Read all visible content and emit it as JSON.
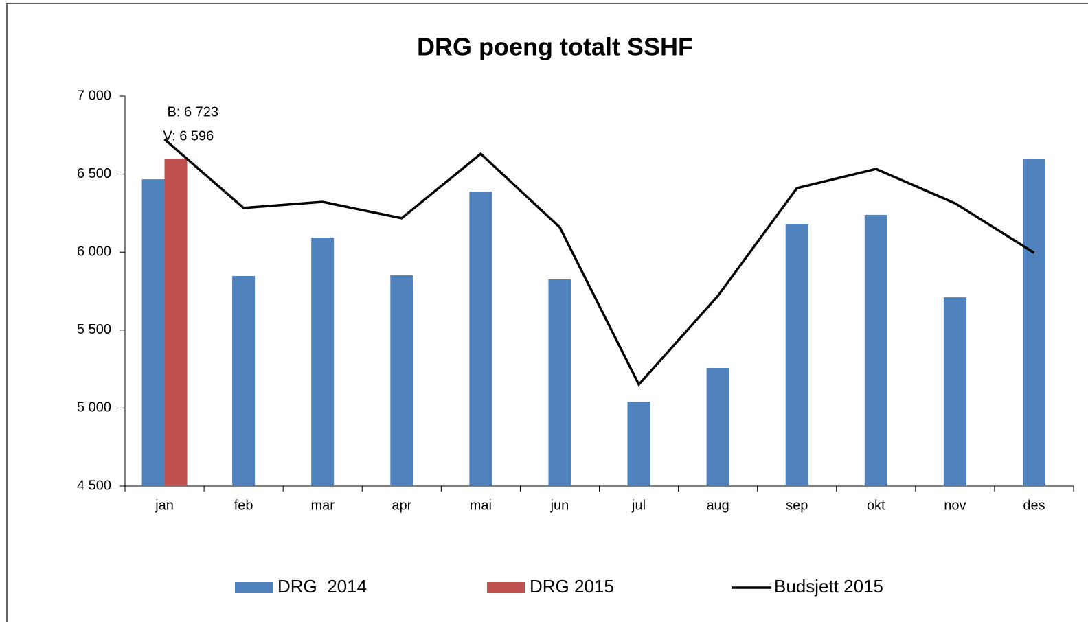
{
  "chart_data": {
    "type": "bar",
    "title": "DRG poeng totalt SSHF",
    "categories": [
      "jan",
      "feb",
      "mar",
      "apr",
      "mai",
      "jun",
      "jul",
      "aug",
      "sep",
      "okt",
      "nov",
      "des"
    ],
    "series": [
      {
        "name": "DRG  2014",
        "color": "#4f81bd",
        "type": "bar",
        "values": [
          6467,
          5847,
          6093,
          5851,
          6388,
          5825,
          5041,
          5257,
          6181,
          6239,
          5710,
          6595
        ]
      },
      {
        "name": "DRG 2015",
        "color": "#c0504d",
        "type": "bar",
        "values": [
          6596,
          null,
          null,
          null,
          null,
          null,
          null,
          null,
          null,
          null,
          null,
          null
        ],
        "value_labels": [
          "V: 6 596",
          null,
          null,
          null,
          null,
          null,
          null,
          null,
          null,
          null,
          null,
          null
        ]
      },
      {
        "name": "Budsjett 2015",
        "color": "#000000",
        "type": "line",
        "values": [
          6723,
          6283,
          6322,
          6217,
          6630,
          6159,
          5151,
          5719,
          6410,
          6533,
          6313,
          5996
        ],
        "value_labels": [
          "B: 6 723",
          null,
          null,
          null,
          null,
          null,
          null,
          null,
          null,
          null,
          null,
          null
        ]
      }
    ],
    "ylim": [
      4500,
      7000
    ],
    "yticks": [
      {
        "value": 4500,
        "label": "4 500"
      },
      {
        "value": 5000,
        "label": "5 000"
      },
      {
        "value": 5500,
        "label": "5 500"
      },
      {
        "value": 6000,
        "label": "6 000"
      },
      {
        "value": 6500,
        "label": "6 500"
      },
      {
        "value": 7000,
        "label": "7 000"
      }
    ],
    "grid": false,
    "legend": "bottom"
  }
}
